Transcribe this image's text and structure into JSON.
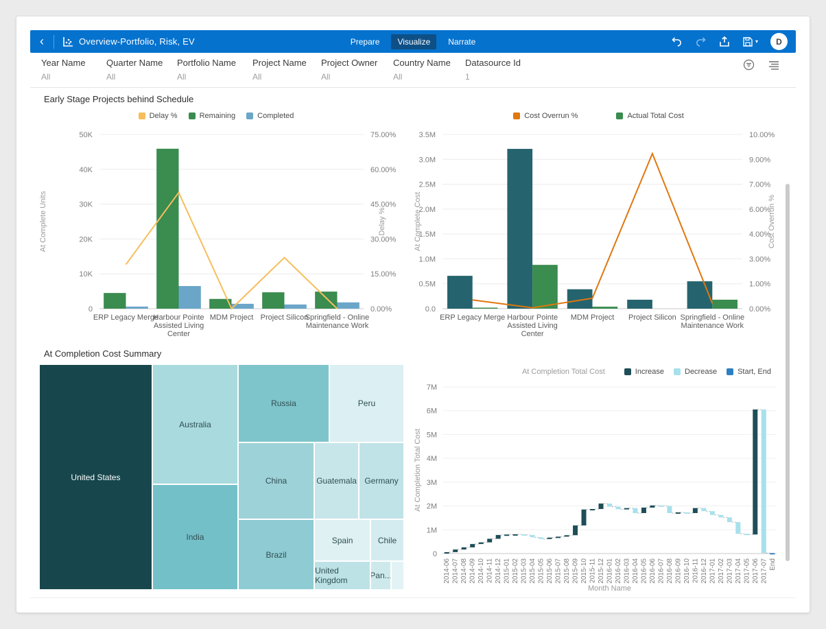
{
  "header": {
    "title": "Overview-Portfolio, Risk, EV",
    "tabs": [
      {
        "label": "Prepare",
        "active": false
      },
      {
        "label": "Visualize",
        "active": true
      },
      {
        "label": "Narrate",
        "active": false
      }
    ],
    "avatar_initial": "D"
  },
  "filters": {
    "items": [
      {
        "label": "Year Name",
        "value": "All"
      },
      {
        "label": "Quarter Name",
        "value": "All"
      },
      {
        "label": "Portfolio Name",
        "value": "All"
      },
      {
        "label": "Project Name",
        "value": "All"
      },
      {
        "label": "Project Owner",
        "value": "All"
      },
      {
        "label": "Country Name",
        "value": "All"
      },
      {
        "label": "Datasource Id",
        "value": "1"
      }
    ]
  },
  "sections": {
    "top_title": "Early Stage Projects behind Schedule",
    "bottom_title": "At Completion Cost Summary"
  },
  "colors": {
    "header_bar": "#0572CE",
    "active_tab_bg": "#0E4F86",
    "page_bg": "#EBEBEB",
    "card_bg": "#FFFFFF"
  },
  "chart_data": [
    {
      "id": "behind-schedule-combo",
      "type": "bar",
      "title": "Early Stage Projects behind Schedule",
      "categories": [
        "ERP Legacy Merge",
        "Harbour Pointe Assisted Living Center",
        "MDM Project",
        "Project Silicon",
        "Springfield - Online Maintenance Work"
      ],
      "category_lines": [
        [
          "ERP Legacy Merge"
        ],
        [
          "Harbour Pointe",
          "Assisted Living",
          "Center"
        ],
        [
          "MDM Project"
        ],
        [
          "Project Silicon"
        ],
        [
          "Springfield - Online",
          "Maintenance Work"
        ]
      ],
      "series": [
        {
          "name": "Remaining",
          "type": "bar",
          "color": "#3A8C4F",
          "values": [
            4500,
            45900,
            2800,
            4700,
            4900
          ]
        },
        {
          "name": "Completed",
          "type": "bar",
          "color": "#6BA6C9",
          "values": [
            600,
            6500,
            1400,
            1200,
            1800
          ]
        },
        {
          "name": "Delay %",
          "type": "line",
          "axis": "right",
          "color": "#F6BE5C",
          "values": [
            19,
            50,
            0,
            22,
            0
          ]
        }
      ],
      "legend": [
        {
          "label": "Delay %",
          "color": "#F6BE5C"
        },
        {
          "label": "Remaining",
          "color": "#3A8C4F"
        },
        {
          "label": "Completed",
          "color": "#6BA6C9"
        }
      ],
      "left_axis": {
        "label": "At Complete Units",
        "min": 0,
        "max": 50000,
        "ticks": [
          "0",
          "10K",
          "20K",
          "30K",
          "40K",
          "50K"
        ]
      },
      "right_axis": {
        "label": "Delay %",
        "min": 0,
        "max": 75,
        "ticks": [
          "0.00%",
          "15.00%",
          "30.00%",
          "45.00%",
          "60.00%",
          "75.00%"
        ]
      }
    },
    {
      "id": "cost-overrun-combo",
      "type": "bar",
      "categories": [
        "ERP Legacy Merge",
        "Harbour Pointe Assisted Living Center",
        "MDM Project",
        "Project Silicon",
        "Springfield - Online Maintenance Work"
      ],
      "category_lines": [
        [
          "ERP Legacy Merge"
        ],
        [
          "Harbour Pointe",
          "Assisted Living",
          "Center"
        ],
        [
          "MDM Project"
        ],
        [
          "Project Silicon"
        ],
        [
          "Springfield - Online",
          "Maintenance Work"
        ]
      ],
      "series": [
        {
          "name": "At Complete Cost",
          "type": "bar",
          "color": "#25646E",
          "values": [
            660000,
            3210000,
            390000,
            180000,
            550000
          ]
        },
        {
          "name": "Actual Total Cost",
          "type": "bar",
          "color": "#3A8C4F",
          "values": [
            20000,
            880000,
            40000,
            0,
            180000
          ]
        },
        {
          "name": "Cost Overrun %",
          "type": "line",
          "axis": "right",
          "color": "#E0770F",
          "values": [
            0.5,
            0.05,
            0.6,
            8.9,
            0.3
          ]
        }
      ],
      "legend": [
        {
          "label": "Cost Overrun %",
          "color": "#E0770F"
        },
        {
          "label": "Actual Total Cost",
          "color": "#3A8C4F"
        }
      ],
      "left_axis": {
        "label": "At Complete Cost",
        "min": 0,
        "max": 3500000,
        "ticks": [
          "0.0",
          "0.5M",
          "1.0M",
          "1.5M",
          "2.0M",
          "2.5M",
          "3.0M",
          "3.5M"
        ]
      },
      "right_axis": {
        "label": "Cost Overrun %",
        "min": 0,
        "max": 10,
        "ticks": [
          "0.00%",
          "1.00%",
          "3.00%",
          "4.00%",
          "6.00%",
          "7.00%",
          "9.00%",
          "10.00%"
        ]
      }
    },
    {
      "id": "cost-summary-treemap",
      "type": "treemap",
      "title": "At Completion Cost Summary",
      "nodes": [
        {
          "label": "United States",
          "color": "#17474D",
          "text_color": "#FFFFFF",
          "x": 0,
          "y": 0,
          "w": 0.31,
          "h": 1.0
        },
        {
          "label": "Australia",
          "color": "#A9DADE",
          "x": 0.31,
          "y": 0,
          "w": 0.235,
          "h": 0.532
        },
        {
          "label": "India",
          "color": "#74C0C8",
          "x": 0.31,
          "y": 0.532,
          "w": 0.235,
          "h": 0.468
        },
        {
          "label": "Russia",
          "color": "#7EC5CB",
          "x": 0.545,
          "y": 0,
          "w": 0.25,
          "h": 0.347
        },
        {
          "label": "Peru",
          "color": "#DCEFF2",
          "x": 0.795,
          "y": 0,
          "w": 0.205,
          "h": 0.347
        },
        {
          "label": "China",
          "color": "#9DD2D8",
          "x": 0.545,
          "y": 0.347,
          "w": 0.209,
          "h": 0.34
        },
        {
          "label": "Guatemala",
          "color": "#C6E6EA",
          "x": 0.754,
          "y": 0.347,
          "w": 0.122,
          "h": 0.34
        },
        {
          "label": "Germany",
          "color": "#BFE3E7",
          "x": 0.876,
          "y": 0.347,
          "w": 0.124,
          "h": 0.34
        },
        {
          "label": "Brazil",
          "color": "#8ECBD2",
          "x": 0.545,
          "y": 0.687,
          "w": 0.209,
          "h": 0.313
        },
        {
          "label": "Spain",
          "color": "#DFF1F3",
          "x": 0.754,
          "y": 0.687,
          "w": 0.154,
          "h": 0.186
        },
        {
          "label": "Chile",
          "color": "#D4ECEF",
          "x": 0.908,
          "y": 0.687,
          "w": 0.092,
          "h": 0.186
        },
        {
          "label": "United Kingdom",
          "color": "#BCE2E6",
          "x": 0.754,
          "y": 0.873,
          "w": 0.154,
          "h": 0.127
        },
        {
          "label": "Pan...",
          "color": "#CDE9EC",
          "x": 0.908,
          "y": 0.873,
          "w": 0.056,
          "h": 0.127
        },
        {
          "label": "",
          "color": "#E3F3F5",
          "x": 0.964,
          "y": 0.873,
          "w": 0.036,
          "h": 0.127
        }
      ]
    },
    {
      "id": "completion-cost-waterfall",
      "type": "waterfall",
      "series_label": "At Completion Total Cost",
      "legend": [
        {
          "label": "Increase",
          "kind": "increase",
          "color": "#1E4E57"
        },
        {
          "label": "Decrease",
          "kind": "decrease",
          "color": "#A7E0EC"
        },
        {
          "label": "Start, End",
          "kind": "start_end",
          "color": "#2E7FC1"
        }
      ],
      "xlabel": "Month Name",
      "ylabel": "At Completion Total Cost",
      "y_ticks": [
        "0",
        "1M",
        "2M",
        "3M",
        "4M",
        "5M",
        "6M",
        "7M"
      ],
      "y_max": 7,
      "categories": [
        "2014-06",
        "2014-07",
        "2014-08",
        "2014-09",
        "2014-10",
        "2014-11",
        "2014-12",
        "2015-01",
        "2015-02",
        "2015-03",
        "2015-04",
        "2015-05",
        "2015-06",
        "2015-07",
        "2015-08",
        "2015-09",
        "2015-10",
        "2015-11",
        "2015-12",
        "2016-01",
        "2016-02",
        "2016-03",
        "2016-04",
        "2016-05",
        "2016-06",
        "2016-07",
        "2016-08",
        "2016-09",
        "2016-10",
        "2016-11",
        "2016-12",
        "2017-01",
        "2017-02",
        "2017-03",
        "2017-04",
        "2017-05",
        "2017-06",
        "2017-07",
        "End"
      ],
      "bars": [
        {
          "start": 0,
          "end": 0.06,
          "kind": "increase"
        },
        {
          "start": 0.06,
          "end": 0.17,
          "kind": "increase"
        },
        {
          "start": 0.17,
          "end": 0.26,
          "kind": "increase"
        },
        {
          "start": 0.26,
          "end": 0.4,
          "kind": "increase"
        },
        {
          "start": 0.4,
          "end": 0.47,
          "kind": "increase"
        },
        {
          "start": 0.47,
          "end": 0.62,
          "kind": "increase"
        },
        {
          "start": 0.62,
          "end": 0.78,
          "kind": "increase"
        },
        {
          "start": 0.78,
          "end": 0.8,
          "kind": "increase"
        },
        {
          "start": 0.8,
          "end": 0.81,
          "kind": "increase"
        },
        {
          "start": 0.81,
          "end": 0.78,
          "kind": "decrease"
        },
        {
          "start": 0.78,
          "end": 0.68,
          "kind": "decrease"
        },
        {
          "start": 0.68,
          "end": 0.61,
          "kind": "decrease"
        },
        {
          "start": 0.61,
          "end": 0.67,
          "kind": "increase"
        },
        {
          "start": 0.67,
          "end": 0.71,
          "kind": "increase"
        },
        {
          "start": 0.71,
          "end": 0.77,
          "kind": "increase"
        },
        {
          "start": 0.77,
          "end": 1.18,
          "kind": "increase"
        },
        {
          "start": 1.18,
          "end": 1.85,
          "kind": "increase"
        },
        {
          "start": 1.85,
          "end": 1.87,
          "kind": "increase"
        },
        {
          "start": 1.87,
          "end": 2.1,
          "kind": "increase"
        },
        {
          "start": 2.1,
          "end": 1.97,
          "kind": "decrease"
        },
        {
          "start": 1.97,
          "end": 1.86,
          "kind": "decrease"
        },
        {
          "start": 1.86,
          "end": 1.91,
          "kind": "increase"
        },
        {
          "start": 1.91,
          "end": 1.7,
          "kind": "decrease"
        },
        {
          "start": 1.7,
          "end": 1.93,
          "kind": "increase"
        },
        {
          "start": 1.93,
          "end": 2.02,
          "kind": "increase"
        },
        {
          "start": 2.02,
          "end": 2.0,
          "kind": "decrease"
        },
        {
          "start": 2.0,
          "end": 1.7,
          "kind": "decrease"
        },
        {
          "start": 1.7,
          "end": 1.73,
          "kind": "increase"
        },
        {
          "start": 1.73,
          "end": 1.7,
          "kind": "decrease"
        },
        {
          "start": 1.7,
          "end": 1.91,
          "kind": "increase"
        },
        {
          "start": 1.91,
          "end": 1.78,
          "kind": "decrease"
        },
        {
          "start": 1.78,
          "end": 1.62,
          "kind": "decrease"
        },
        {
          "start": 1.62,
          "end": 1.52,
          "kind": "decrease"
        },
        {
          "start": 1.52,
          "end": 1.32,
          "kind": "decrease"
        },
        {
          "start": 1.32,
          "end": 0.83,
          "kind": "decrease"
        },
        {
          "start": 0.83,
          "end": 0.8,
          "kind": "decrease"
        },
        {
          "start": 0.8,
          "end": 6.05,
          "kind": "increase"
        },
        {
          "start": 6.05,
          "end": 0.02,
          "kind": "decrease"
        },
        {
          "start": 0,
          "end": 0.02,
          "kind": "start_end"
        }
      ]
    }
  ]
}
